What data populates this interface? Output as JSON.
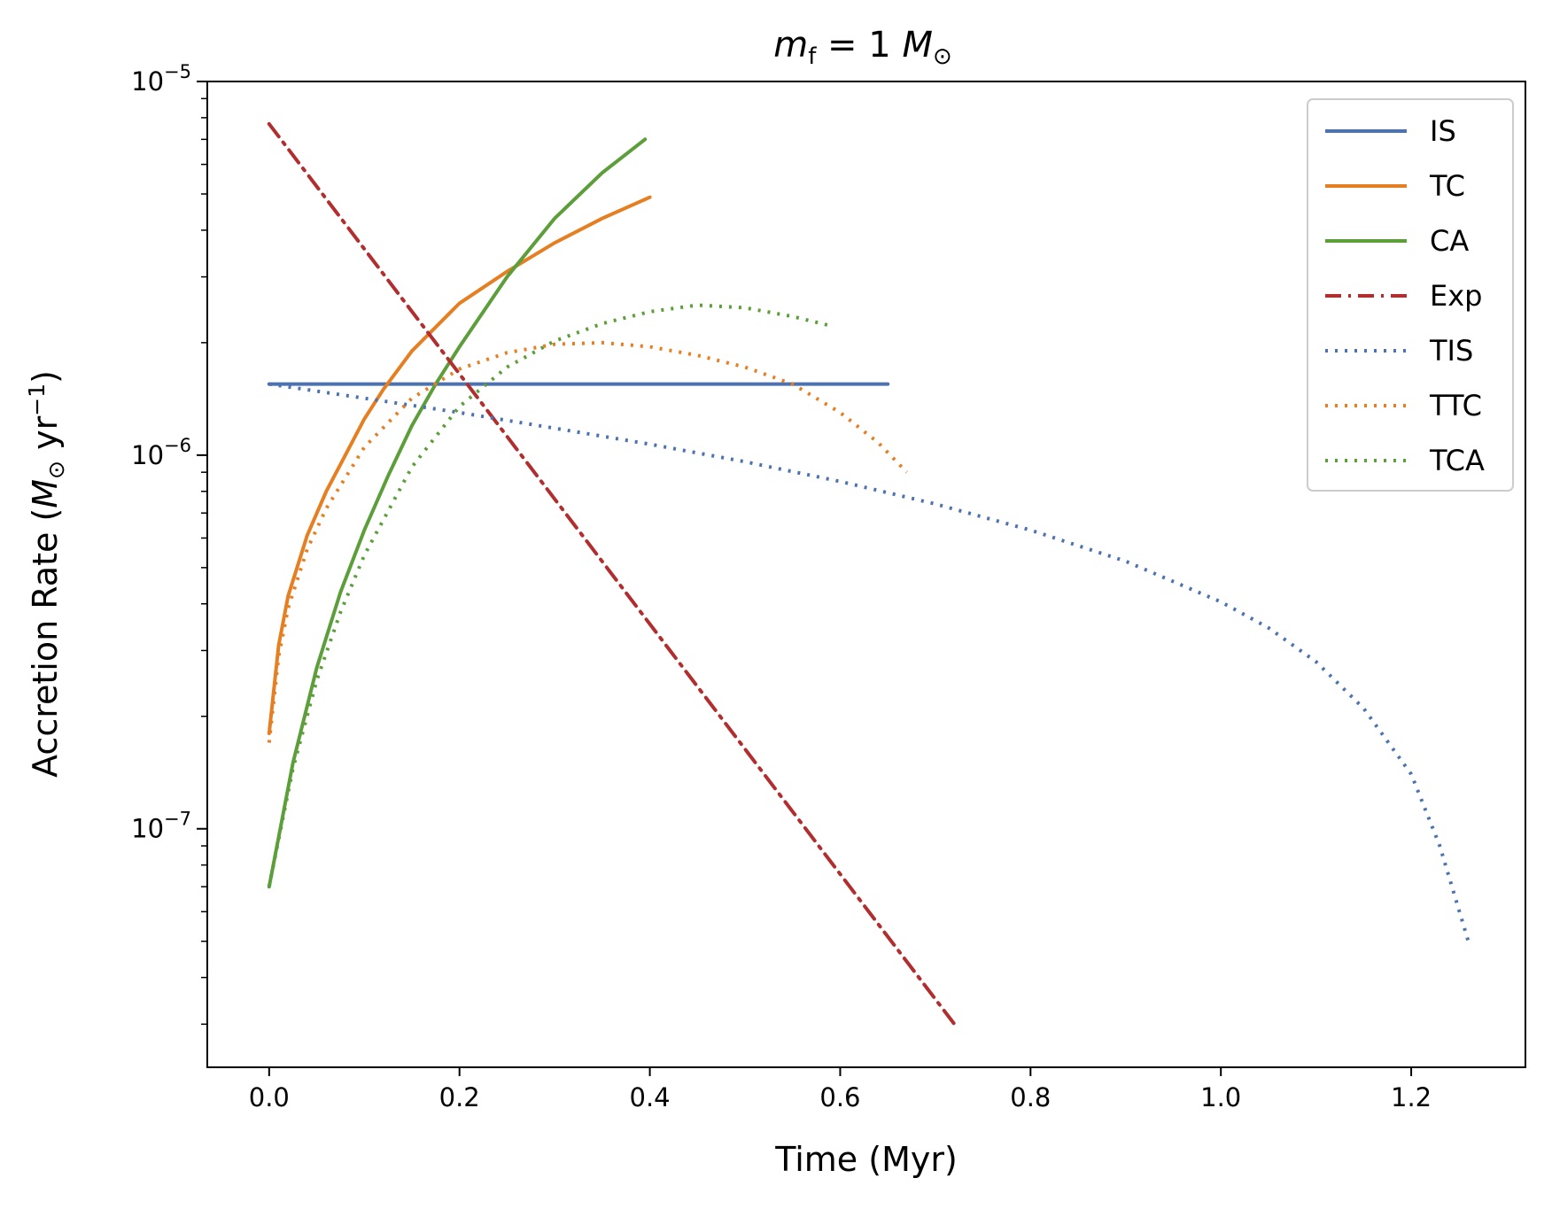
{
  "chart_data": {
    "type": "line",
    "title": {
      "prefix": "m",
      "sub": "f",
      "middle": " = 1 ",
      "unit": "M",
      "unit_sub": "⊙"
    },
    "xlabel": "Time (Myr)",
    "ylabel": {
      "start": "Accretion Rate (",
      "unit": "M",
      "unit_sub": "⊙",
      "mid": " yr",
      "sup": "−1",
      "end": ")"
    },
    "xscale": "linear",
    "yscale": "log",
    "xlim": [
      -0.065,
      1.32
    ],
    "ylim": [
      2.3e-08,
      1e-05
    ],
    "xticks": [
      {
        "value": 0.0,
        "label": "0.0"
      },
      {
        "value": 0.2,
        "label": "0.2"
      },
      {
        "value": 0.4,
        "label": "0.4"
      },
      {
        "value": 0.6,
        "label": "0.6"
      },
      {
        "value": 0.8,
        "label": "0.8"
      },
      {
        "value": 1.0,
        "label": "1.0"
      },
      {
        "value": 1.2,
        "label": "1.2"
      }
    ],
    "yticks": [
      {
        "value": 1e-05,
        "base": "10",
        "exp": "−5"
      },
      {
        "value": 1e-06,
        "base": "10",
        "exp": "−6"
      },
      {
        "value": 1e-07,
        "base": "10",
        "exp": "−7"
      }
    ],
    "grid": false,
    "legend_position": "top-right",
    "series": [
      {
        "name": "IS",
        "color": "#4c72b0",
        "style": "solid",
        "x": [
          0.0,
          0.65
        ],
        "y": [
          1.55e-06,
          1.55e-06
        ]
      },
      {
        "name": "TC",
        "color": "#e67e22",
        "style": "solid",
        "x": [
          0.0,
          0.01,
          0.02,
          0.04,
          0.06,
          0.08,
          0.1,
          0.12,
          0.15,
          0.2,
          0.25,
          0.3,
          0.35,
          0.4
        ],
        "y": [
          1.8e-07,
          3.1e-07,
          4.2e-07,
          6.1e-07,
          8e-07,
          1e-06,
          1.25e-06,
          1.5e-06,
          1.9e-06,
          2.55e-06,
          3.1e-06,
          3.7e-06,
          4.3e-06,
          4.9e-06
        ]
      },
      {
        "name": "CA",
        "color": "#5b9e3a",
        "style": "solid",
        "x": [
          0.0,
          0.025,
          0.05,
          0.075,
          0.1,
          0.125,
          0.15,
          0.175,
          0.2,
          0.25,
          0.3,
          0.35,
          0.395
        ],
        "y": [
          7e-08,
          1.5e-07,
          2.7e-07,
          4.3e-07,
          6.3e-07,
          8.8e-07,
          1.2e-06,
          1.55e-06,
          1.95e-06,
          3e-06,
          4.3e-06,
          5.7e-06,
          7e-06
        ]
      },
      {
        "name": "Exp",
        "color": "#b22e2e",
        "style": "dashdot",
        "x": [
          0.0,
          0.72
        ],
        "y": [
          7.7e-06,
          3e-08
        ]
      },
      {
        "name": "TIS",
        "color": "#4c72b0",
        "style": "dotted",
        "x": [
          0.0,
          0.1,
          0.2,
          0.3,
          0.4,
          0.5,
          0.6,
          0.7,
          0.8,
          0.9,
          1.0,
          1.05,
          1.1,
          1.15,
          1.2,
          1.23,
          1.26
        ],
        "y": [
          1.55e-06,
          1.42e-06,
          1.3e-06,
          1.18e-06,
          1.07e-06,
          9.6e-07,
          8.5e-07,
          7.4e-07,
          6.3e-07,
          5.2e-07,
          4.05e-07,
          3.45e-07,
          2.8e-07,
          2.1e-07,
          1.4e-07,
          9e-08,
          5e-08
        ]
      },
      {
        "name": "TTC",
        "color": "#e67e22",
        "style": "dotted",
        "x": [
          0.0,
          0.01,
          0.02,
          0.04,
          0.06,
          0.1,
          0.15,
          0.2,
          0.25,
          0.3,
          0.35,
          0.4,
          0.45,
          0.5,
          0.55,
          0.6,
          0.64,
          0.67
        ],
        "y": [
          1.7e-07,
          2.9e-07,
          3.9e-07,
          5.6e-07,
          7.2e-07,
          1.05e-06,
          1.42e-06,
          1.7e-06,
          1.88e-06,
          1.98e-06,
          2e-06,
          1.95e-06,
          1.85e-06,
          1.72e-06,
          1.55e-06,
          1.3e-06,
          1.08e-06,
          9e-07
        ]
      },
      {
        "name": "TCA",
        "color": "#5b9e3a",
        "style": "dotted",
        "x": [
          0.0,
          0.025,
          0.05,
          0.075,
          0.1,
          0.15,
          0.2,
          0.25,
          0.3,
          0.35,
          0.4,
          0.45,
          0.5,
          0.55,
          0.59
        ],
        "y": [
          7e-08,
          1.45e-07,
          2.5e-07,
          3.8e-07,
          5.4e-07,
          9.3e-07,
          1.35e-06,
          1.72e-06,
          2.02e-06,
          2.25e-06,
          2.42e-06,
          2.52e-06,
          2.48e-06,
          2.35e-06,
          2.22e-06
        ]
      }
    ]
  }
}
